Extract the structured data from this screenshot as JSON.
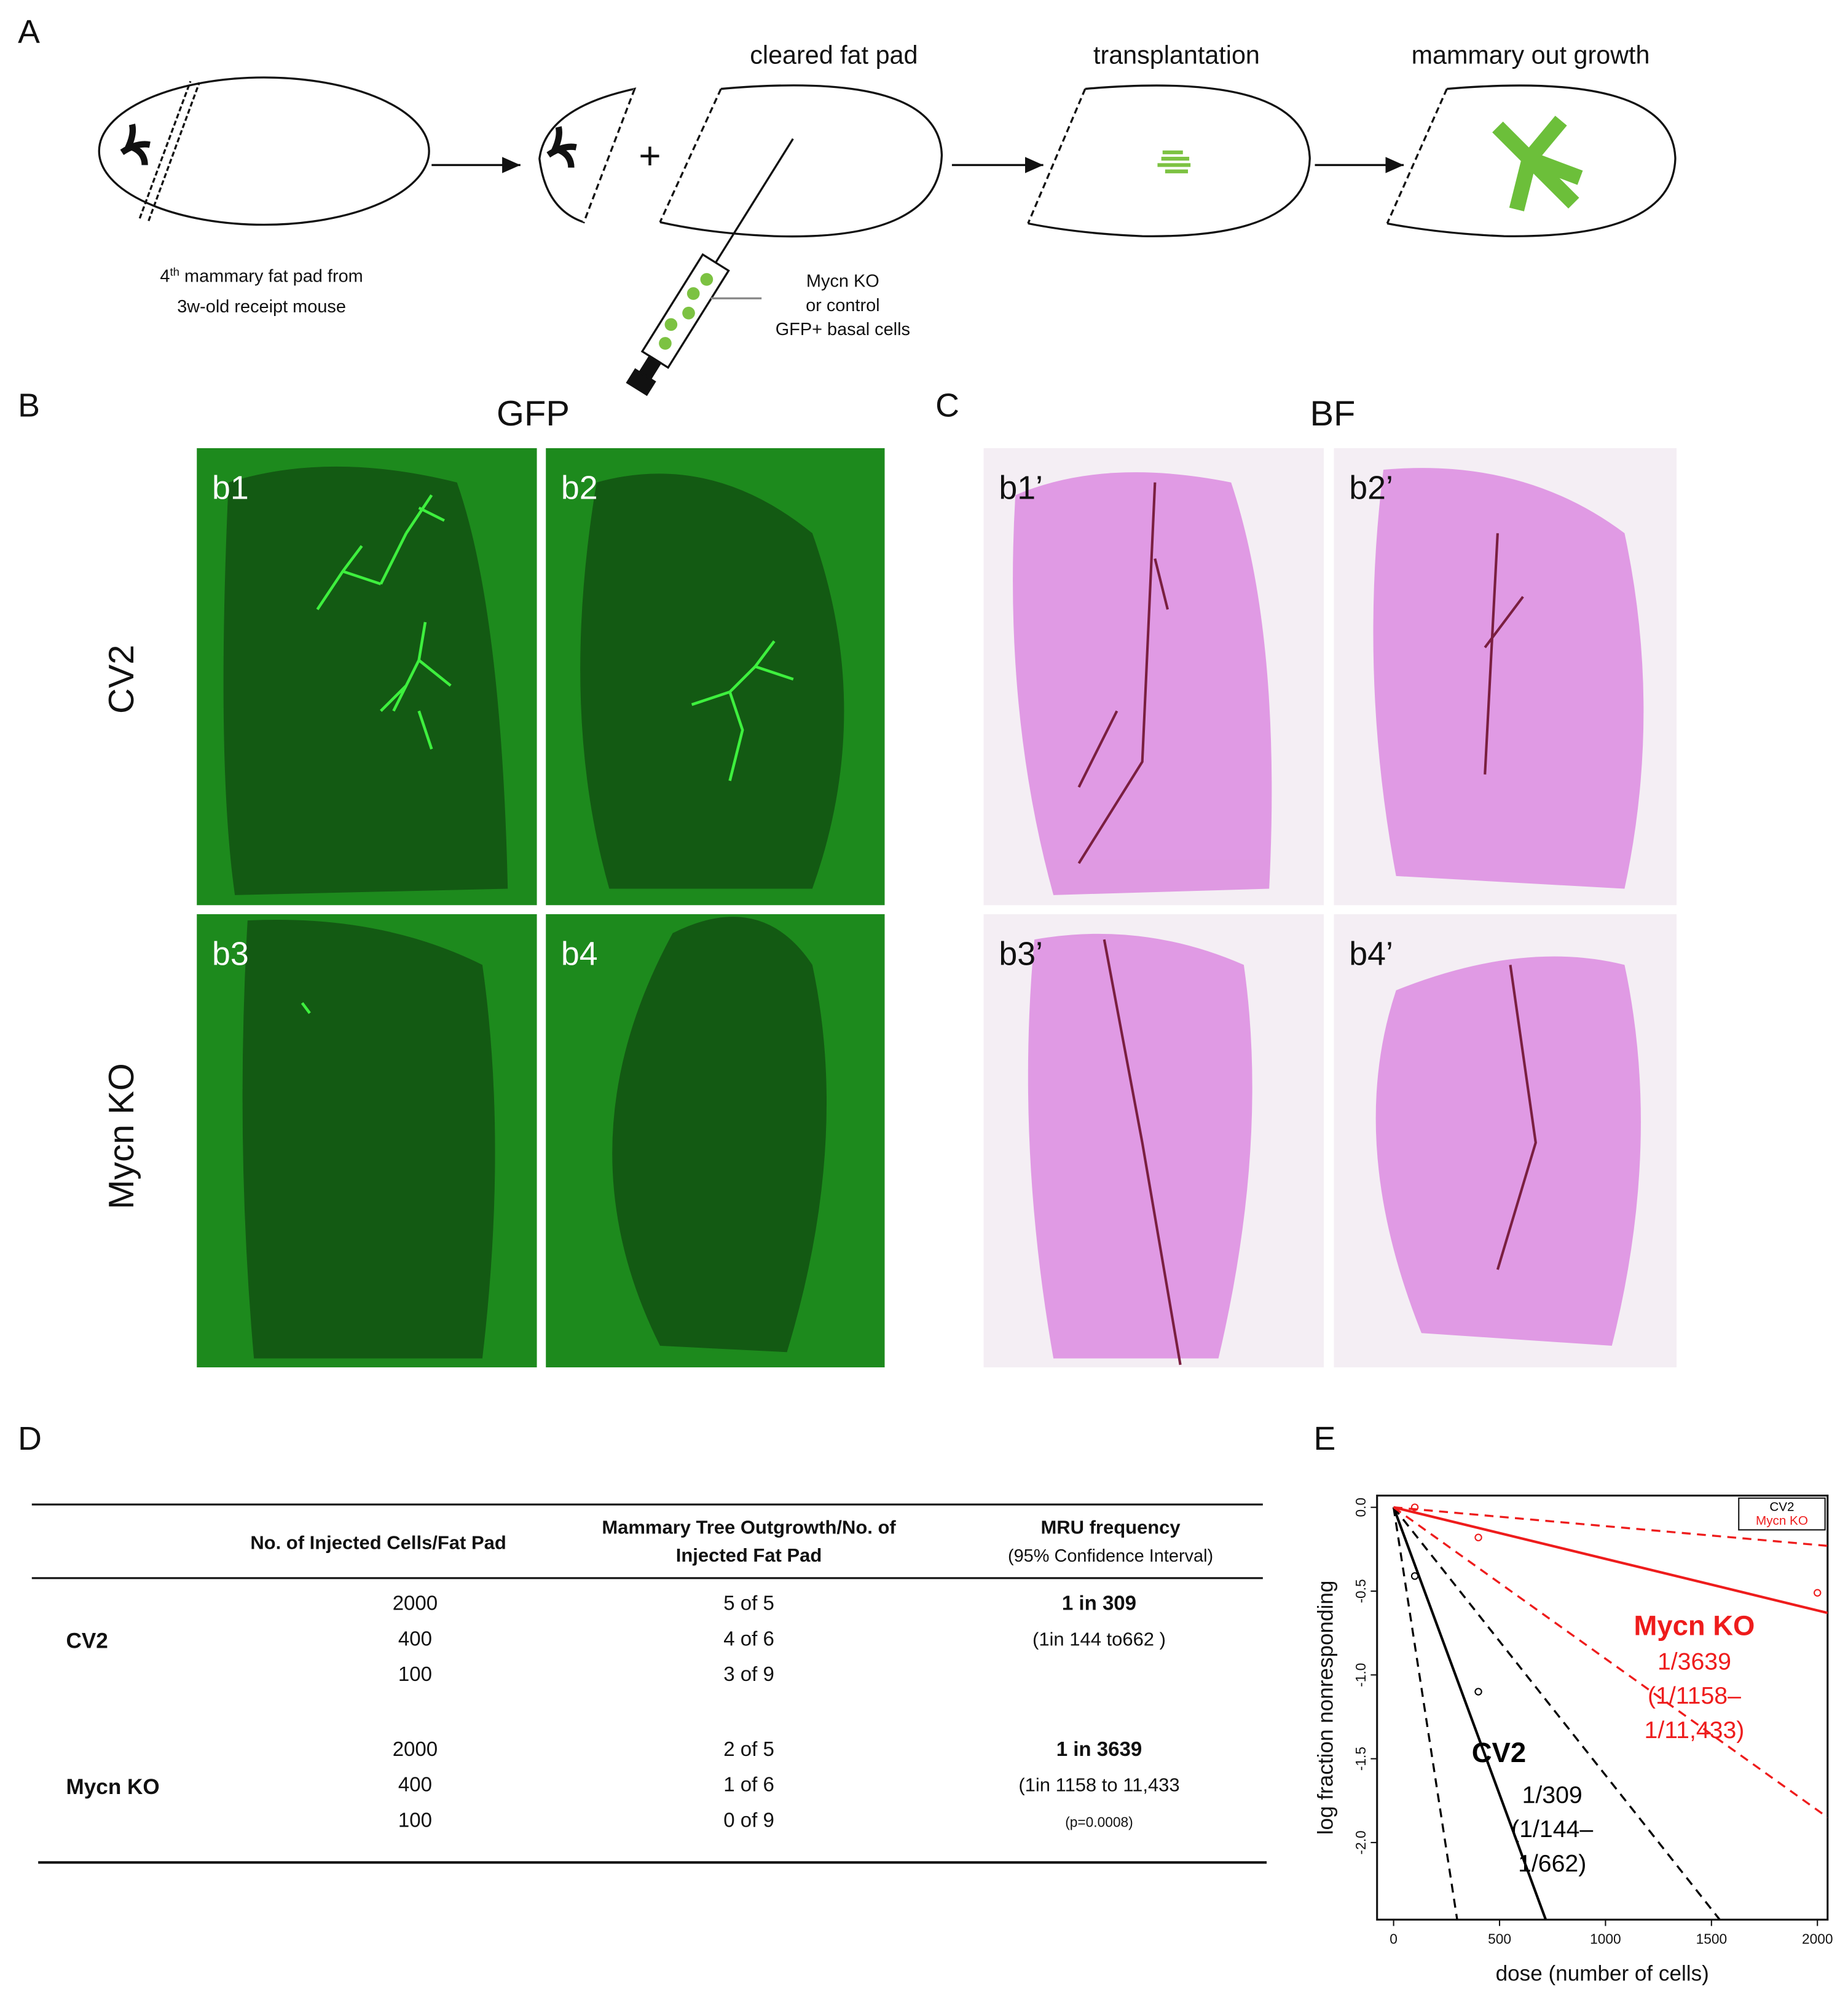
{
  "panel_a": {
    "label": "A",
    "steps": [
      "cleared fat pad",
      "transplantation",
      "mammary out growth"
    ],
    "plus": "+",
    "donor_note": {
      "number": "4",
      "suffix": "th",
      "rest": " mammary fat pad from",
      "line2": "3w-old receipt mouse"
    },
    "cells_note": [
      "Mycn KO",
      "or control",
      "GFP+ basal cells"
    ]
  },
  "panel_b": {
    "label": "B",
    "title": "GFP",
    "rows": [
      "CV2",
      "Mycn KO"
    ],
    "images": [
      "b1",
      "b2",
      "b3",
      "b4"
    ]
  },
  "panel_c": {
    "label": "C",
    "title": "BF",
    "images": [
      "b1’",
      "b2’",
      "b3’",
      "b4’"
    ]
  },
  "panel_d": {
    "label": "D",
    "headers": [
      "No. of Injected Cells/Fat Pad",
      [
        "Mammary Tree Outgrowth/No. of",
        "Injected Fat Pad"
      ],
      [
        "MRU frequency",
        "(95% Confidence Interval)"
      ]
    ],
    "groups": [
      {
        "name": "CV2",
        "doses": [
          2000,
          400,
          100
        ],
        "outgrowth": [
          "5 of 5",
          "4 of 6",
          "3 of 9"
        ],
        "frequency": "1 in 309",
        "interval": "(1in 144 to662 )"
      },
      {
        "name": "Mycn KO",
        "doses": [
          2000,
          400,
          100
        ],
        "outgrowth": [
          "2 of 5",
          "1 of 6",
          "0 of  9"
        ],
        "frequency": "1 in 3639",
        "interval": "(1in 1158 to 11,433",
        "p_value": "(p=0.0008)"
      }
    ]
  },
  "chart_data": {
    "type": "line",
    "label": "E",
    "x_label": "dose (number of cells)",
    "y_label": "log fraction nonresponding",
    "xlim": [
      -78,
      2048
    ],
    "ylim": [
      -2.46,
      0.07
    ],
    "xticks": [
      0,
      500,
      1000,
      1500,
      2000
    ],
    "yticks": [
      {
        "value": 0,
        "label": "0.0"
      },
      -0.5,
      {
        "value": -1,
        "label": "-1.0"
      },
      -1.5,
      {
        "value": -2,
        "label": "-2.0"
      }
    ],
    "legend": "top-right",
    "series": [
      {
        "name": "CV2",
        "color": "#000000",
        "x": [
          0,
          718
        ],
        "values": [
          0,
          -2.46
        ],
        "points_x": [
          100,
          400
        ],
        "points": [
          -0.41,
          -1.1
        ],
        "ci": [
          {
            "x": [
              0,
              300
            ],
            "values": [
              0,
              -2.46
            ]
          },
          {
            "x": [
              0,
              1539
            ],
            "values": [
              0,
              -2.46
            ]
          }
        ]
      },
      {
        "name": "Mycn KO",
        "color": "#ee1c1c",
        "x": [
          0,
          2048
        ],
        "values": [
          0,
          -0.63
        ],
        "points_x": [
          100,
          400,
          2000
        ],
        "points": [
          0,
          -0.18,
          -0.51
        ],
        "ci": [
          {
            "x": [
              0,
              2048
            ],
            "values": [
              0,
              -0.23
            ]
          },
          {
            "x": [
              0,
              2048
            ],
            "values": [
              0,
              -1.85
            ]
          }
        ]
      }
    ],
    "annotations": [
      {
        "text": "CV2",
        "color": "#000000",
        "bold": true
      },
      {
        "text": "1/309",
        "color": "#000000"
      },
      {
        "text": "(1/144–",
        "color": "#000000"
      },
      {
        "text": "1/662)",
        "color": "#000000"
      },
      {
        "text": "Mycn KO",
        "color": "#ee1c1c",
        "bold": true
      },
      {
        "text": "1/3639",
        "color": "#ee1c1c"
      },
      {
        "text": "(1/1158–",
        "color": "#ee1c1c"
      },
      {
        "text": "1/11,433)",
        "color": "#ee1c1c"
      }
    ]
  }
}
